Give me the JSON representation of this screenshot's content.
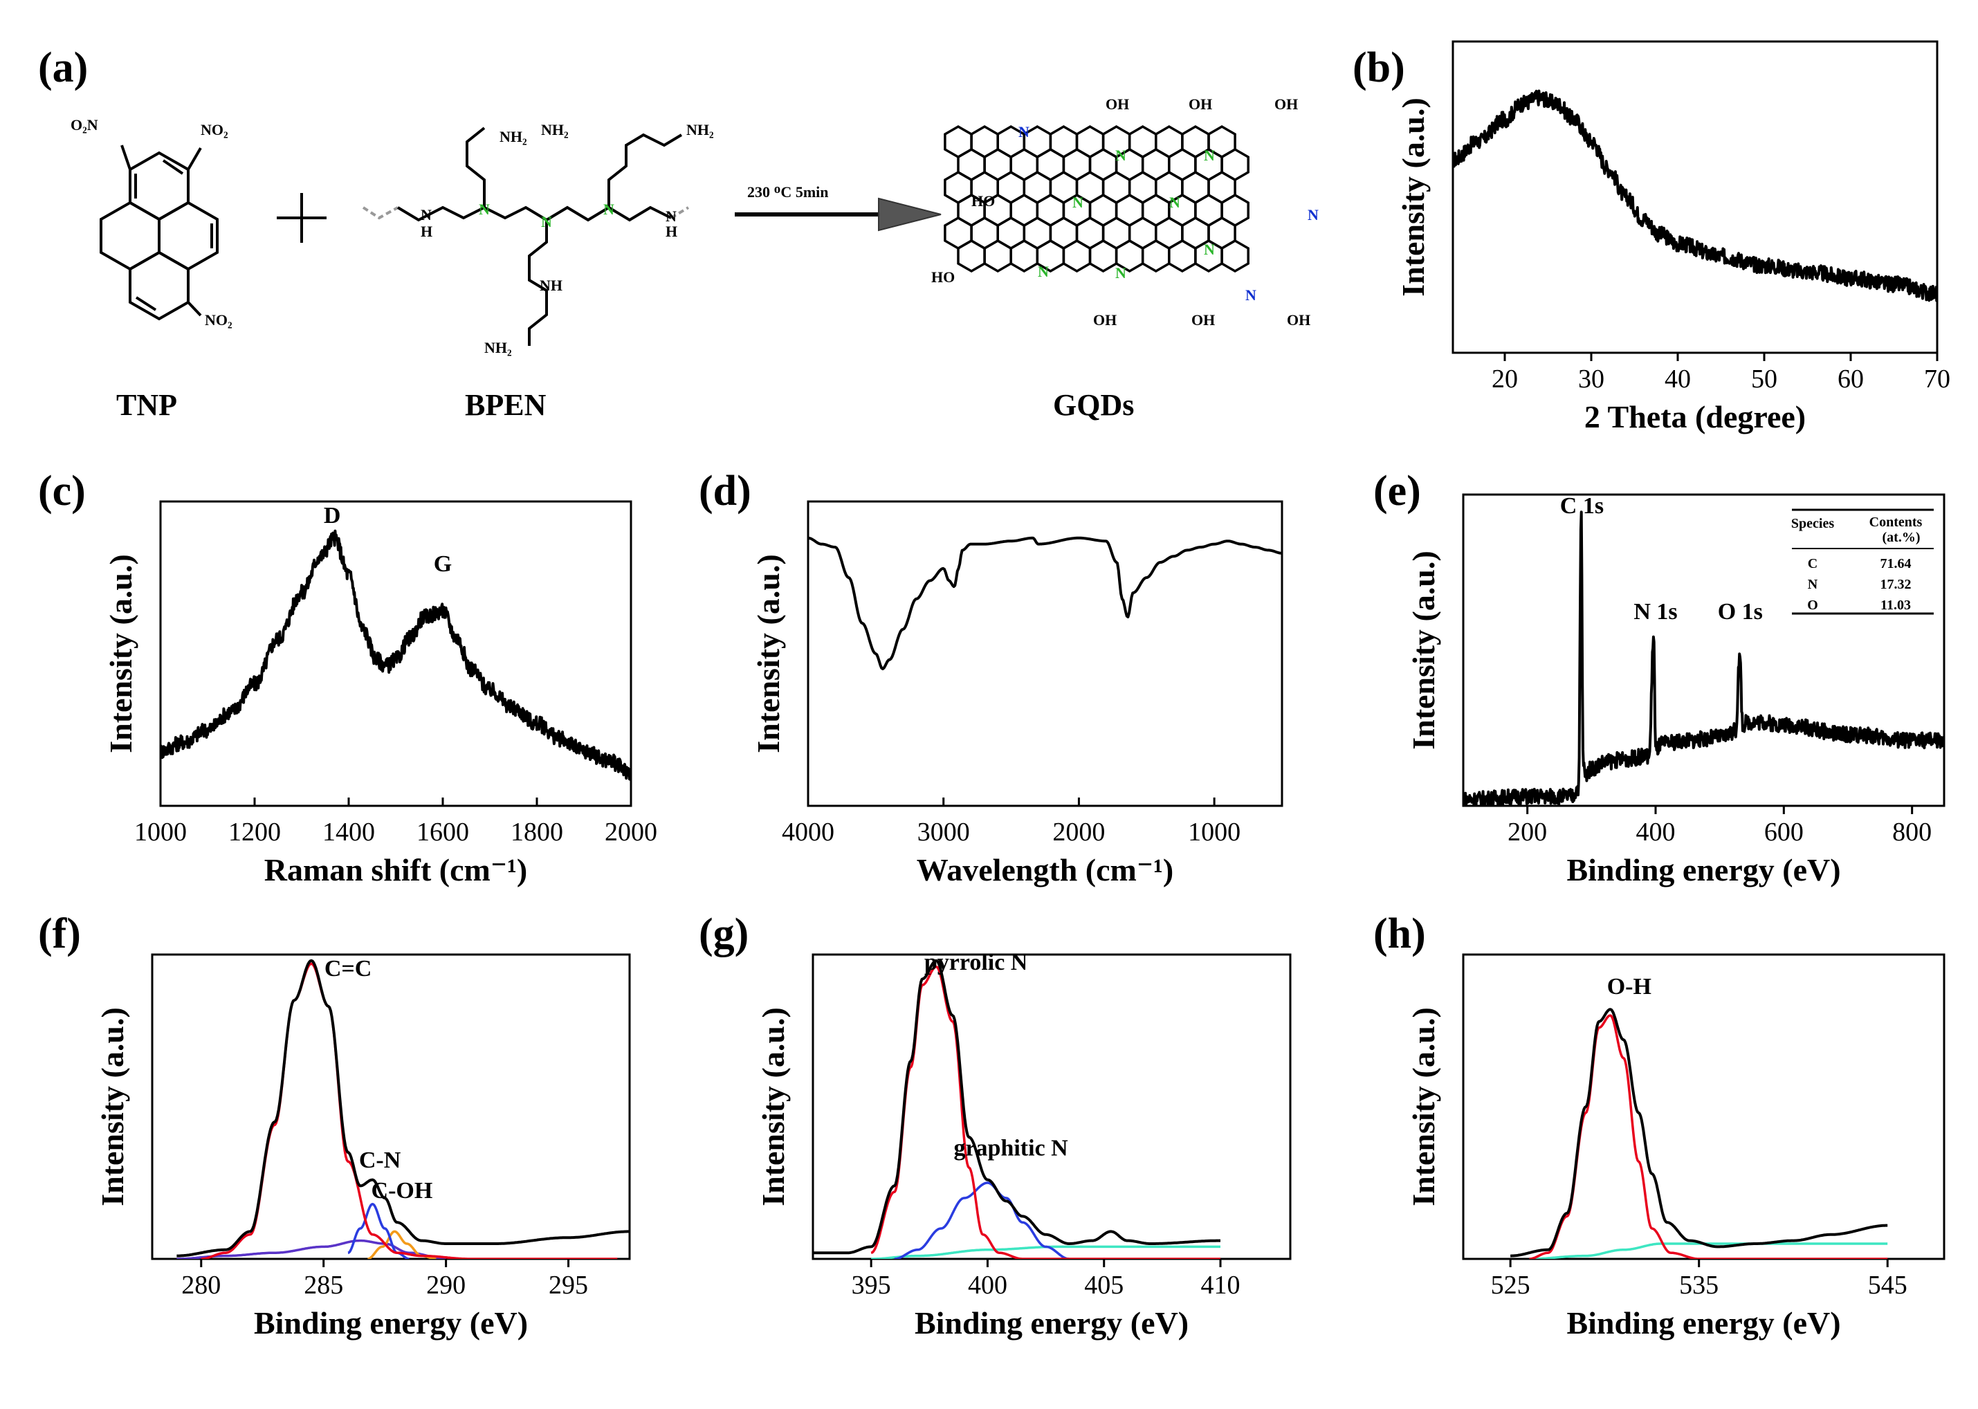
{
  "panel_labels": [
    "(a)",
    "(b)",
    "(c)",
    "(d)",
    "(e)",
    "(f)",
    "(g)",
    "(h)"
  ],
  "scheme": {
    "reactant1": "TNP",
    "reactant2": "BPEN",
    "product": "GQDs",
    "condition": "230 ᴼC 5min",
    "group_labels": {
      "nitro": "NO₂",
      "nitro_left": "O₂N",
      "amine": "NH₂",
      "secondary_amine": "NH",
      "h": "H",
      "n": "N",
      "hydroxyl": "OH",
      "hydroxyl_left": "HO"
    }
  },
  "colors": {
    "fit_red": "#e8001c",
    "fit_blue": "#2a3ce0",
    "fit_orange": "#f39a1a",
    "fit_purple": "#5a34c8",
    "fit_cyan": "#3ee6c2",
    "n_green": "#2bb52b",
    "n_blue": "#1030d0",
    "data": "#000000"
  },
  "chart_data": [
    {
      "id": "b",
      "type": "line",
      "xlabel": "2 Theta (degree)",
      "ylabel": "Intensity (a.u.)",
      "xlim": [
        14,
        70
      ],
      "ylim": [
        0,
        1
      ],
      "xticks": [
        20,
        30,
        40,
        50,
        60,
        70
      ],
      "noisy": true,
      "series": [
        {
          "x": [
            14,
            17,
            20,
            22,
            24,
            26,
            28,
            30,
            32,
            34,
            36,
            38,
            40,
            45,
            50,
            55,
            60,
            65,
            70
          ],
          "y": [
            0.62,
            0.68,
            0.75,
            0.8,
            0.82,
            0.8,
            0.75,
            0.68,
            0.59,
            0.5,
            0.43,
            0.38,
            0.35,
            0.31,
            0.28,
            0.26,
            0.24,
            0.22,
            0.19
          ]
        }
      ]
    },
    {
      "id": "c",
      "type": "line",
      "xlabel": "Raman shift (cm⁻¹)",
      "ylabel": "Intensity (a.u.)",
      "xlim": [
        1000,
        2000
      ],
      "ylim": [
        0,
        1
      ],
      "xticks": [
        1000,
        1200,
        1400,
        1600,
        1800,
        2000
      ],
      "noisy": true,
      "annotations": [
        {
          "text": "D",
          "x": 1365,
          "y": 0.93
        },
        {
          "text": "G",
          "x": 1600,
          "y": 0.77
        }
      ],
      "series": [
        {
          "x": [
            1000,
            1050,
            1100,
            1150,
            1200,
            1250,
            1300,
            1340,
            1370,
            1400,
            1430,
            1460,
            1480,
            1500,
            1530,
            1560,
            1600,
            1630,
            1660,
            1700,
            1750,
            1800,
            1850,
            1900,
            1950,
            2000
          ],
          "y": [
            0.18,
            0.21,
            0.25,
            0.31,
            0.4,
            0.55,
            0.7,
            0.82,
            0.88,
            0.76,
            0.58,
            0.48,
            0.46,
            0.48,
            0.55,
            0.62,
            0.64,
            0.55,
            0.45,
            0.38,
            0.32,
            0.27,
            0.22,
            0.18,
            0.15,
            0.11
          ]
        }
      ]
    },
    {
      "id": "d",
      "type": "line",
      "xlabel": "Wavelength (cm⁻¹)",
      "ylabel": "Intensity (a.u.)",
      "xlim": [
        4000,
        500
      ],
      "ylim": [
        0,
        1
      ],
      "xticks": [
        4000,
        3000,
        2000,
        1000
      ],
      "noisy": false,
      "series": [
        {
          "x": [
            4000,
            3900,
            3800,
            3700,
            3600,
            3500,
            3450,
            3400,
            3300,
            3200,
            3100,
            3000,
            2960,
            2920,
            2890,
            2860,
            2800,
            2700,
            2500,
            2340,
            2300,
            2000,
            1800,
            1720,
            1680,
            1640,
            1600,
            1500,
            1400,
            1300,
            1200,
            1100,
            1000,
            900,
            800,
            700,
            600,
            500
          ],
          "y": [
            0.88,
            0.86,
            0.85,
            0.75,
            0.6,
            0.5,
            0.45,
            0.48,
            0.58,
            0.68,
            0.74,
            0.78,
            0.74,
            0.72,
            0.78,
            0.84,
            0.86,
            0.86,
            0.87,
            0.88,
            0.86,
            0.88,
            0.87,
            0.8,
            0.68,
            0.62,
            0.7,
            0.75,
            0.8,
            0.82,
            0.84,
            0.85,
            0.86,
            0.87,
            0.86,
            0.85,
            0.84,
            0.83
          ]
        }
      ]
    },
    {
      "id": "e",
      "type": "line",
      "xlabel": "Binding energy (eV)",
      "ylabel": "Intensity (a.u.)",
      "xlim": [
        100,
        850
      ],
      "ylim": [
        0,
        1
      ],
      "xticks": [
        200,
        400,
        600,
        800
      ],
      "noisy": true,
      "annotations": [
        {
          "text": "C 1s",
          "x": 285,
          "y": 0.94
        },
        {
          "text": "N 1s",
          "x": 400,
          "y": 0.6
        },
        {
          "text": "O 1s",
          "x": 532,
          "y": 0.6
        }
      ],
      "table": {
        "headers": [
          "Species",
          "Contents (at.%)"
        ],
        "rows": [
          [
            "C",
            "71.64"
          ],
          [
            "N",
            "17.32"
          ],
          [
            "O",
            "11.03"
          ]
        ]
      },
      "series": [
        {
          "x": [
            100,
            200,
            270,
            280,
            284,
            287,
            290,
            300,
            320,
            350,
            390,
            397,
            400,
            410,
            450,
            500,
            525,
            531,
            536,
            545,
            560,
            600,
            700,
            800
          ],
          "y": [
            0.02,
            0.03,
            0.03,
            0.06,
            0.94,
            0.14,
            0.1,
            0.12,
            0.14,
            0.15,
            0.16,
            0.55,
            0.18,
            0.2,
            0.21,
            0.22,
            0.24,
            0.48,
            0.26,
            0.27,
            0.27,
            0.26,
            0.23,
            0.21
          ]
        }
      ]
    },
    {
      "id": "f",
      "type": "line",
      "xlabel": "Binding energy (eV)",
      "ylabel": "Intensity (a.u.)",
      "xlim": [
        278,
        297.5
      ],
      "ylim": [
        0,
        1
      ],
      "xticks": [
        280,
        285,
        290,
        295
      ],
      "noisy": false,
      "annotations": [
        {
          "text": "C=C",
          "x": 286,
          "y": 0.93
        },
        {
          "text": "C-N",
          "x": 287.3,
          "y": 0.3
        },
        {
          "text": "C-OH",
          "x": 288.2,
          "y": 0.2
        }
      ],
      "series": [
        {
          "name": "",
          "color": "#000000",
          "x": [
            279,
            281,
            282,
            283,
            283.8,
            284.5,
            285.2,
            286,
            286.5,
            287,
            287.5,
            288,
            289,
            290,
            292,
            295,
            297.5
          ],
          "y": [
            0.01,
            0.03,
            0.09,
            0.45,
            0.85,
            0.98,
            0.83,
            0.35,
            0.24,
            0.26,
            0.2,
            0.12,
            0.06,
            0.05,
            0.05,
            0.07,
            0.09
          ]
        },
        {
          "name": "",
          "color": "#e8001c",
          "x": [
            280,
            281,
            282,
            283,
            283.8,
            284.5,
            285.2,
            286,
            287,
            288,
            289,
            291,
            297
          ],
          "y": [
            0.0,
            0.02,
            0.08,
            0.44,
            0.85,
            0.97,
            0.83,
            0.32,
            0.08,
            0.02,
            0.01,
            0.0,
            0.0
          ]
        },
        {
          "name": "",
          "color": "#2a3ce0",
          "x": [
            286,
            286.5,
            287,
            287.5,
            288,
            288.5
          ],
          "y": [
            0.02,
            0.1,
            0.18,
            0.1,
            0.02,
            0.0
          ]
        },
        {
          "name": "",
          "color": "#f39a1a",
          "x": [
            286.8,
            287.4,
            287.9,
            288.4,
            289,
            289.6
          ],
          "y": [
            0.0,
            0.04,
            0.09,
            0.05,
            0.01,
            0.0
          ]
        },
        {
          "name": "",
          "color": "#5a34c8",
          "x": [
            279,
            281,
            283,
            285,
            286.5,
            287.5,
            288.5,
            290
          ],
          "y": [
            0.0,
            0.01,
            0.02,
            0.04,
            0.06,
            0.05,
            0.02,
            0.0
          ]
        }
      ]
    },
    {
      "id": "g",
      "type": "line",
      "xlabel": "Binding energy (eV)",
      "ylabel": "Intensity (a.u.)",
      "xlim": [
        392.5,
        413
      ],
      "ylim": [
        0,
        1
      ],
      "xticks": [
        395,
        400,
        405,
        410
      ],
      "noisy": false,
      "annotations": [
        {
          "text": "pyrrolic N",
          "x": 399.5,
          "y": 0.95
        },
        {
          "text": "graphitic N",
          "x": 401,
          "y": 0.34
        }
      ],
      "series": [
        {
          "name": "",
          "color": "#000000",
          "x": [
            392.5,
            394,
            395,
            396,
            396.7,
            397.2,
            397.8,
            398.5,
            399.2,
            400,
            400.8,
            401.5,
            402.5,
            403.5,
            404.5,
            405.3,
            406,
            407,
            410
          ],
          "y": [
            0.02,
            0.02,
            0.04,
            0.24,
            0.65,
            0.92,
            0.98,
            0.8,
            0.4,
            0.26,
            0.19,
            0.14,
            0.08,
            0.05,
            0.06,
            0.09,
            0.06,
            0.05,
            0.06
          ]
        },
        {
          "name": "",
          "color": "#e8001c",
          "x": [
            395,
            396,
            396.7,
            397.2,
            397.8,
            398.5,
            399.2,
            399.8,
            400.5,
            401.5,
            410
          ],
          "y": [
            0.02,
            0.22,
            0.63,
            0.9,
            0.96,
            0.78,
            0.3,
            0.08,
            0.02,
            0.0,
            0.0
          ]
        },
        {
          "name": "",
          "color": "#2a3ce0",
          "x": [
            396,
            397,
            398,
            399,
            400,
            400.8,
            401.5,
            402.5,
            403.5
          ],
          "y": [
            0.0,
            0.03,
            0.1,
            0.2,
            0.25,
            0.2,
            0.12,
            0.04,
            0.0
          ]
        },
        {
          "name": "",
          "color": "#3ee6c2",
          "x": [
            395,
            397,
            400,
            403,
            405,
            407,
            410
          ],
          "y": [
            0.0,
            0.01,
            0.03,
            0.04,
            0.04,
            0.04,
            0.04
          ]
        }
      ]
    },
    {
      "id": "h",
      "type": "line",
      "xlabel": "Binding energy (eV)",
      "ylabel": "Intensity (a.u.)",
      "xlim": [
        522.5,
        548
      ],
      "ylim": [
        0,
        1
      ],
      "xticks": [
        525,
        535,
        545
      ],
      "noisy": false,
      "annotations": [
        {
          "text": "O-H",
          "x": 531.3,
          "y": 0.87
        }
      ],
      "series": [
        {
          "name": "",
          "color": "#000000",
          "x": [
            525,
            527,
            528,
            529,
            529.7,
            530.3,
            531,
            531.8,
            532.5,
            533.3,
            534.5,
            536,
            538,
            540,
            542,
            545
          ],
          "y": [
            0.01,
            0.03,
            0.15,
            0.5,
            0.78,
            0.82,
            0.72,
            0.48,
            0.28,
            0.12,
            0.06,
            0.04,
            0.05,
            0.06,
            0.08,
            0.11
          ]
        },
        {
          "name": "",
          "color": "#e8001c",
          "x": [
            526,
            527,
            528,
            529,
            529.7,
            530.3,
            531,
            531.8,
            532.5,
            533.5,
            535,
            545
          ],
          "y": [
            0.0,
            0.02,
            0.14,
            0.48,
            0.76,
            0.8,
            0.66,
            0.32,
            0.1,
            0.02,
            0.0,
            0.0
          ]
        },
        {
          "name": "",
          "color": "#3ee6c2",
          "x": [
            526,
            529,
            531,
            533,
            535,
            545
          ],
          "y": [
            0.0,
            0.01,
            0.03,
            0.05,
            0.05,
            0.05
          ]
        }
      ]
    }
  ]
}
